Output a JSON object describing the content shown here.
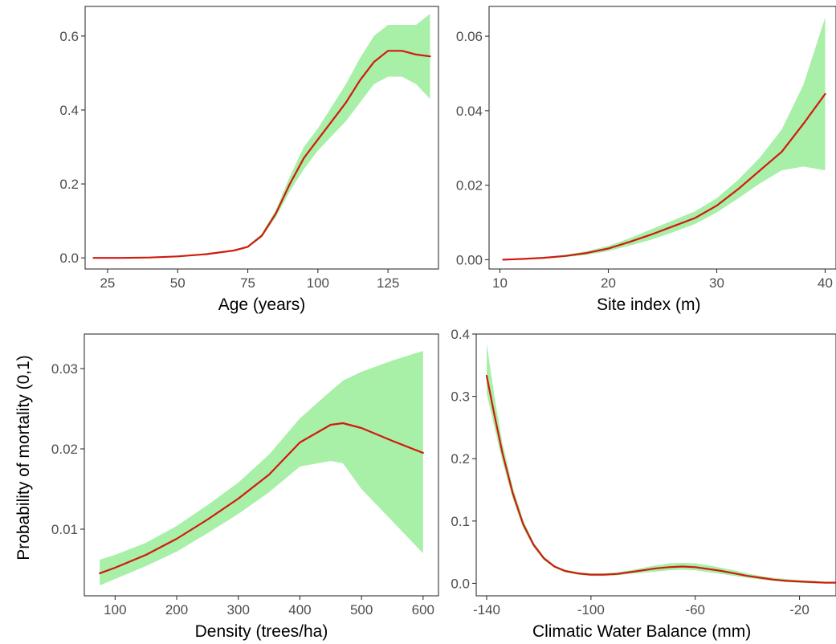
{
  "figure": {
    "ylabel": "Probability of mortality (0,1)",
    "colors": {
      "ribbon": "#a8efa8",
      "line": "#d11a0e",
      "frame": "#333333"
    }
  },
  "chart_data": [
    {
      "type": "line",
      "xlabel": "Age (years)",
      "ylabel": "",
      "xlim": [
        17,
        143
      ],
      "ylim": [
        -0.03,
        0.68
      ],
      "x_ticks": [
        25,
        50,
        75,
        100,
        125
      ],
      "x_tick_labels": [
        "25",
        "50",
        "75",
        "100",
        "125"
      ],
      "y_ticks": [
        0.0,
        0.2,
        0.4,
        0.6
      ],
      "y_tick_labels": [
        "0.0",
        "0.2",
        "0.4",
        "0.6"
      ],
      "grid": false,
      "series": [
        {
          "x": [
            20,
            30,
            40,
            50,
            60,
            70,
            75,
            80,
            85,
            90,
            95,
            100,
            105,
            110,
            115,
            120,
            125,
            130,
            135,
            140
          ],
          "y": [
            0.0,
            0.0,
            0.001,
            0.004,
            0.01,
            0.02,
            0.03,
            0.06,
            0.12,
            0.2,
            0.27,
            0.32,
            0.37,
            0.42,
            0.48,
            0.53,
            0.56,
            0.56,
            0.55,
            0.545
          ],
          "lower": [
            0.0,
            0.0,
            0.0,
            0.003,
            0.009,
            0.018,
            0.028,
            0.055,
            0.11,
            0.18,
            0.24,
            0.29,
            0.33,
            0.37,
            0.42,
            0.47,
            0.49,
            0.49,
            0.47,
            0.43
          ],
          "upper": [
            0.001,
            0.001,
            0.002,
            0.006,
            0.012,
            0.022,
            0.033,
            0.065,
            0.13,
            0.22,
            0.3,
            0.35,
            0.41,
            0.47,
            0.54,
            0.6,
            0.63,
            0.63,
            0.63,
            0.66
          ]
        }
      ]
    },
    {
      "type": "line",
      "xlabel": "Site index (m)",
      "ylabel": "",
      "xlim": [
        9,
        41
      ],
      "ylim": [
        -0.0025,
        0.068
      ],
      "x_ticks": [
        10,
        20,
        30,
        40
      ],
      "x_tick_labels": [
        "10",
        "20",
        "30",
        "40"
      ],
      "y_ticks": [
        0.0,
        0.02,
        0.04,
        0.06
      ],
      "y_tick_labels": [
        "0.00",
        "0.02",
        "0.04",
        "0.06"
      ],
      "grid": false,
      "series": [
        {
          "x": [
            10.3,
            12,
            14,
            16,
            18,
            20,
            22,
            24,
            26,
            28,
            30,
            32,
            34,
            36,
            38,
            40
          ],
          "y": [
            0.0,
            0.0002,
            0.0005,
            0.001,
            0.0018,
            0.003,
            0.0048,
            0.0068,
            0.009,
            0.0112,
            0.0145,
            0.019,
            0.024,
            0.029,
            0.0365,
            0.0445
          ],
          "lower": [
            0.0,
            0.0001,
            0.0003,
            0.0007,
            0.0013,
            0.0023,
            0.0038,
            0.0054,
            0.0074,
            0.0096,
            0.0127,
            0.0165,
            0.0205,
            0.024,
            0.025,
            0.024
          ],
          "upper": [
            0.0001,
            0.0003,
            0.0007,
            0.0013,
            0.0023,
            0.0037,
            0.0058,
            0.0082,
            0.0106,
            0.013,
            0.0165,
            0.0215,
            0.0275,
            0.035,
            0.047,
            0.065
          ]
        }
      ]
    },
    {
      "type": "line",
      "xlabel": "Density (trees/ha)",
      "ylabel": "",
      "xlim": [
        50,
        625
      ],
      "ylim": [
        0.0017,
        0.0343
      ],
      "x_ticks": [
        100,
        200,
        300,
        400,
        500,
        600
      ],
      "x_tick_labels": [
        "100",
        "200",
        "300",
        "400",
        "500",
        "600"
      ],
      "y_ticks": [
        0.01,
        0.02,
        0.03
      ],
      "y_tick_labels": [
        "0.01",
        "0.02",
        "0.03"
      ],
      "grid": false,
      "series": [
        {
          "x": [
            75,
            100,
            150,
            200,
            250,
            300,
            350,
            400,
            450,
            470,
            500,
            550,
            600
          ],
          "y": [
            0.0045,
            0.0052,
            0.0068,
            0.0088,
            0.0112,
            0.0138,
            0.0168,
            0.0208,
            0.023,
            0.0232,
            0.0226,
            0.021,
            0.0195
          ],
          "lower": [
            0.003,
            0.0038,
            0.0054,
            0.0072,
            0.0095,
            0.0119,
            0.0146,
            0.0178,
            0.0185,
            0.0182,
            0.015,
            0.011,
            0.007
          ],
          "upper": [
            0.0062,
            0.0068,
            0.0083,
            0.0104,
            0.013,
            0.0158,
            0.0193,
            0.0238,
            0.0272,
            0.0285,
            0.0296,
            0.031,
            0.0322
          ]
        }
      ]
    },
    {
      "type": "line",
      "xlabel": "Climatic Water Balance (mm)",
      "ylabel": "",
      "xlim": [
        -144,
        -6
      ],
      "ylim": [
        -0.02,
        0.4
      ],
      "x_ticks": [
        -140,
        -100,
        -60,
        -20
      ],
      "x_tick_labels": [
        "-140",
        "-100",
        "-60",
        "-20"
      ],
      "y_ticks": [
        0.0,
        0.1,
        0.2,
        0.3,
        0.4
      ],
      "y_tick_labels": [
        "0.0",
        "0.1",
        "0.2",
        "0.3",
        "0.4"
      ],
      "grid": false,
      "series": [
        {
          "x": [
            -140,
            -137,
            -134,
            -130,
            -126,
            -122,
            -118,
            -114,
            -110,
            -105,
            -100,
            -95,
            -90,
            -85,
            -80,
            -75,
            -70,
            -65,
            -60,
            -55,
            -50,
            -45,
            -40,
            -35,
            -30,
            -25,
            -20,
            -15,
            -10,
            -6
          ],
          "y": [
            0.333,
            0.27,
            0.21,
            0.145,
            0.095,
            0.062,
            0.04,
            0.027,
            0.02,
            0.016,
            0.014,
            0.014,
            0.015,
            0.018,
            0.021,
            0.024,
            0.026,
            0.027,
            0.026,
            0.023,
            0.02,
            0.016,
            0.012,
            0.009,
            0.006,
            0.004,
            0.003,
            0.002,
            0.001,
            0.001
          ],
          "lower": [
            0.305,
            0.25,
            0.196,
            0.136,
            0.089,
            0.058,
            0.037,
            0.025,
            0.018,
            0.014,
            0.012,
            0.012,
            0.013,
            0.015,
            0.017,
            0.019,
            0.021,
            0.022,
            0.021,
            0.018,
            0.015,
            0.012,
            0.009,
            0.006,
            0.004,
            0.002,
            0.001,
            0.0,
            0.0,
            0.0
          ],
          "upper": [
            0.385,
            0.3,
            0.226,
            0.155,
            0.102,
            0.066,
            0.043,
            0.029,
            0.022,
            0.018,
            0.016,
            0.016,
            0.018,
            0.021,
            0.025,
            0.029,
            0.032,
            0.033,
            0.032,
            0.029,
            0.025,
            0.021,
            0.016,
            0.012,
            0.009,
            0.007,
            0.005,
            0.004,
            0.003,
            0.003
          ]
        }
      ]
    }
  ]
}
